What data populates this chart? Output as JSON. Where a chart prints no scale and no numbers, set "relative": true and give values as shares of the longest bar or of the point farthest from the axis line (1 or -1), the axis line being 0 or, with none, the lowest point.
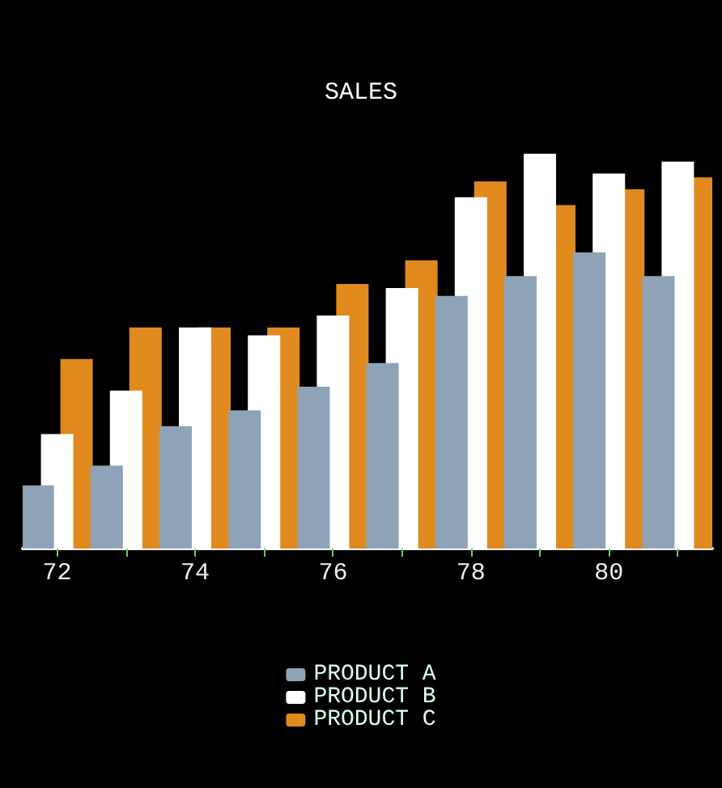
{
  "chart_data": {
    "type": "bar",
    "title": "SALES",
    "relative": true,
    "categories": [
      "72",
      null,
      "74",
      null,
      "76",
      null,
      "78",
      null,
      "80",
      null
    ],
    "series": [
      {
        "name": "PRODUCT A",
        "color": "#8ea3b8",
        "values": [
          0.16,
          0.21,
          0.31,
          0.35,
          0.41,
          0.47,
          0.64,
          0.69,
          0.75,
          0.69
        ]
      },
      {
        "name": "PRODUCT B",
        "color": "#ffffff",
        "values": [
          0.29,
          0.4,
          0.56,
          0.54,
          0.59,
          0.66,
          0.89,
          1,
          0.95,
          0.98
        ]
      },
      {
        "name": "PRODUCT C",
        "color": "#e08a1e",
        "values": [
          0.48,
          0.56,
          0.56,
          0.56,
          0.67,
          0.73,
          0.93,
          0.87,
          0.91,
          0.94
        ]
      }
    ],
    "legend": "bottom",
    "grid": false
  }
}
